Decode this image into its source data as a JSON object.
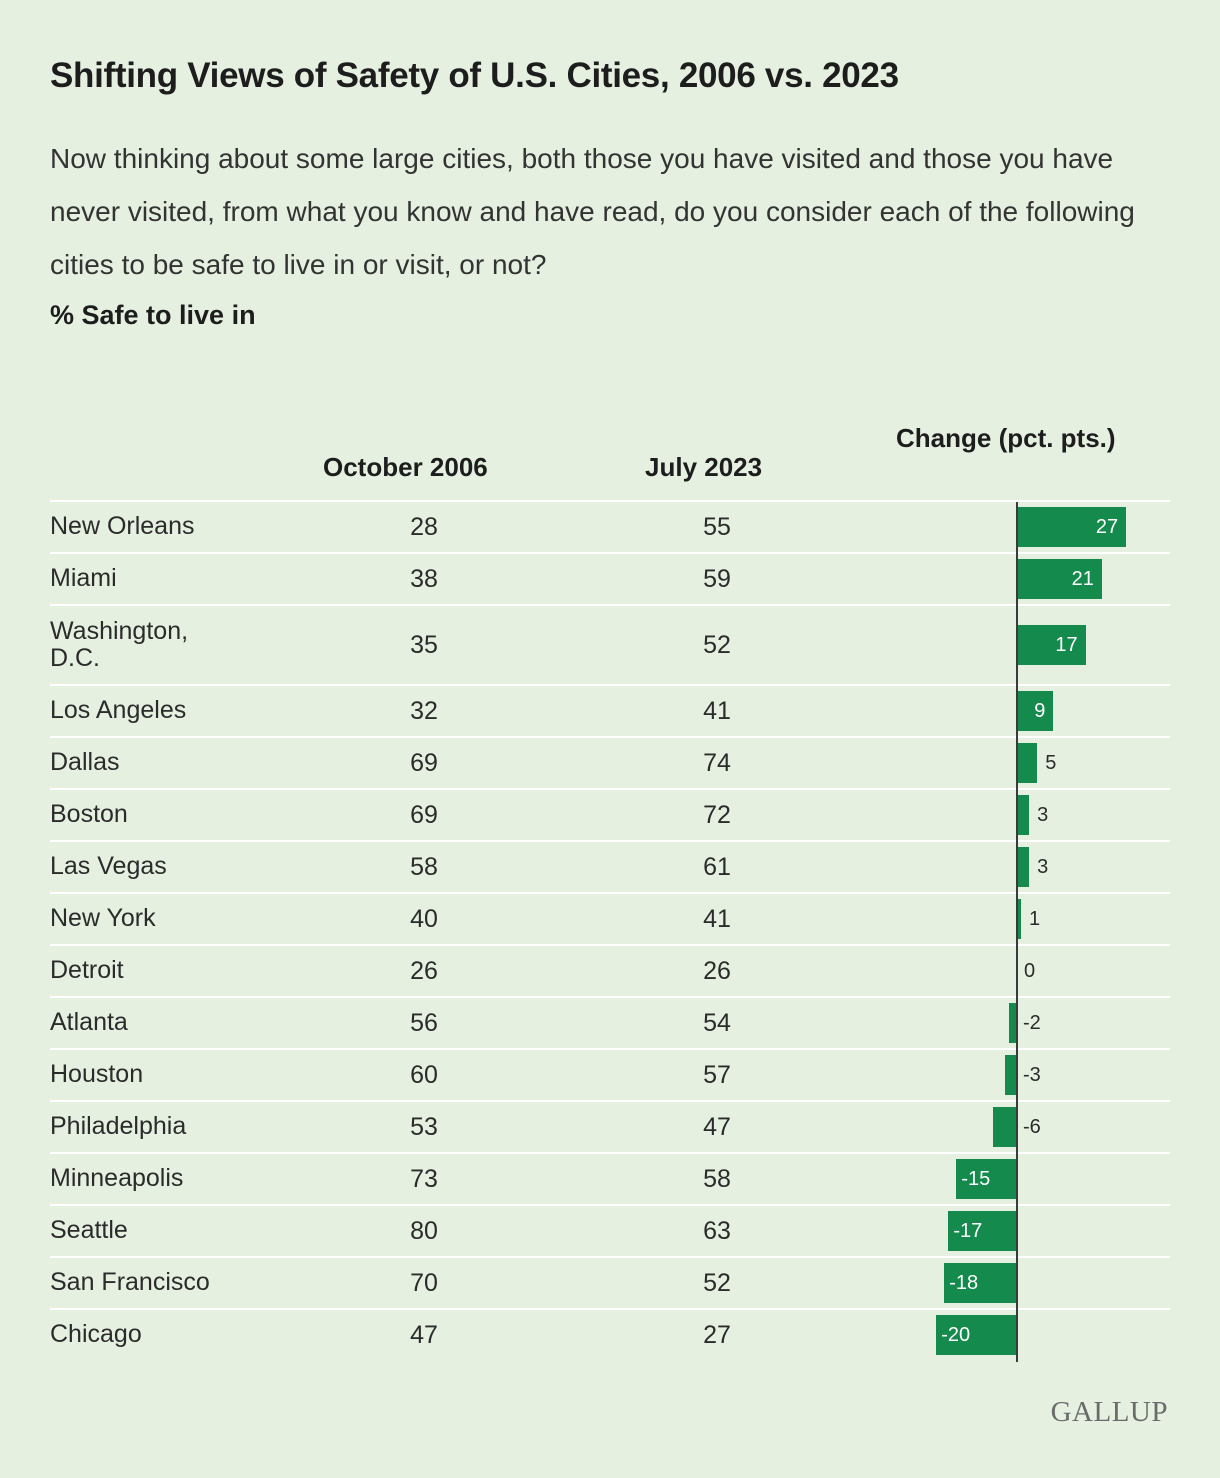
{
  "title": "Shifting Views of Safety of U.S. Cities, 2006 vs. 2023",
  "subtitle": "Now thinking about some large cities, both those you have visited and those you have never visited, from what you know and have read, do you consider each of the following cities to be safe to live in or visit, or not?",
  "measure_label": "% Safe to live in",
  "columns": {
    "oct_2006": "October 2006",
    "jul_2023": "July 2023",
    "change": "Change (pct. pts.)"
  },
  "brand": "GALLUP",
  "colors": {
    "bar": "#148a4c",
    "background": "#e5f0e0",
    "rule": "#ffffff"
  },
  "chart_data": {
    "type": "table",
    "columns": [
      "October 2006",
      "July 2023",
      "Change (pct. pts.)"
    ],
    "rows": [
      {
        "city": "New Orleans",
        "oct_2006": 28,
        "jul_2023": 55,
        "change": 27
      },
      {
        "city": "Miami",
        "oct_2006": 38,
        "jul_2023": 59,
        "change": 21
      },
      {
        "city": "Washington, D.C.",
        "oct_2006": 35,
        "jul_2023": 52,
        "change": 17
      },
      {
        "city": "Los Angeles",
        "oct_2006": 32,
        "jul_2023": 41,
        "change": 9
      },
      {
        "city": "Dallas",
        "oct_2006": 69,
        "jul_2023": 74,
        "change": 5
      },
      {
        "city": "Boston",
        "oct_2006": 69,
        "jul_2023": 72,
        "change": 3
      },
      {
        "city": "Las Vegas",
        "oct_2006": 58,
        "jul_2023": 61,
        "change": 3
      },
      {
        "city": "New York",
        "oct_2006": 40,
        "jul_2023": 41,
        "change": 1
      },
      {
        "city": "Detroit",
        "oct_2006": 26,
        "jul_2023": 26,
        "change": 0
      },
      {
        "city": "Atlanta",
        "oct_2006": 56,
        "jul_2023": 54,
        "change": -2
      },
      {
        "city": "Houston",
        "oct_2006": 60,
        "jul_2023": 57,
        "change": -3
      },
      {
        "city": "Philadelphia",
        "oct_2006": 53,
        "jul_2023": 47,
        "change": -6
      },
      {
        "city": "Minneapolis",
        "oct_2006": 73,
        "jul_2023": 58,
        "change": -15
      },
      {
        "city": "Seattle",
        "oct_2006": 80,
        "jul_2023": 63,
        "change": -17
      },
      {
        "city": "San Francisco",
        "oct_2006": 70,
        "jul_2023": 52,
        "change": -18
      },
      {
        "city": "Chicago",
        "oct_2006": 47,
        "jul_2023": 27,
        "change": -20
      }
    ]
  }
}
